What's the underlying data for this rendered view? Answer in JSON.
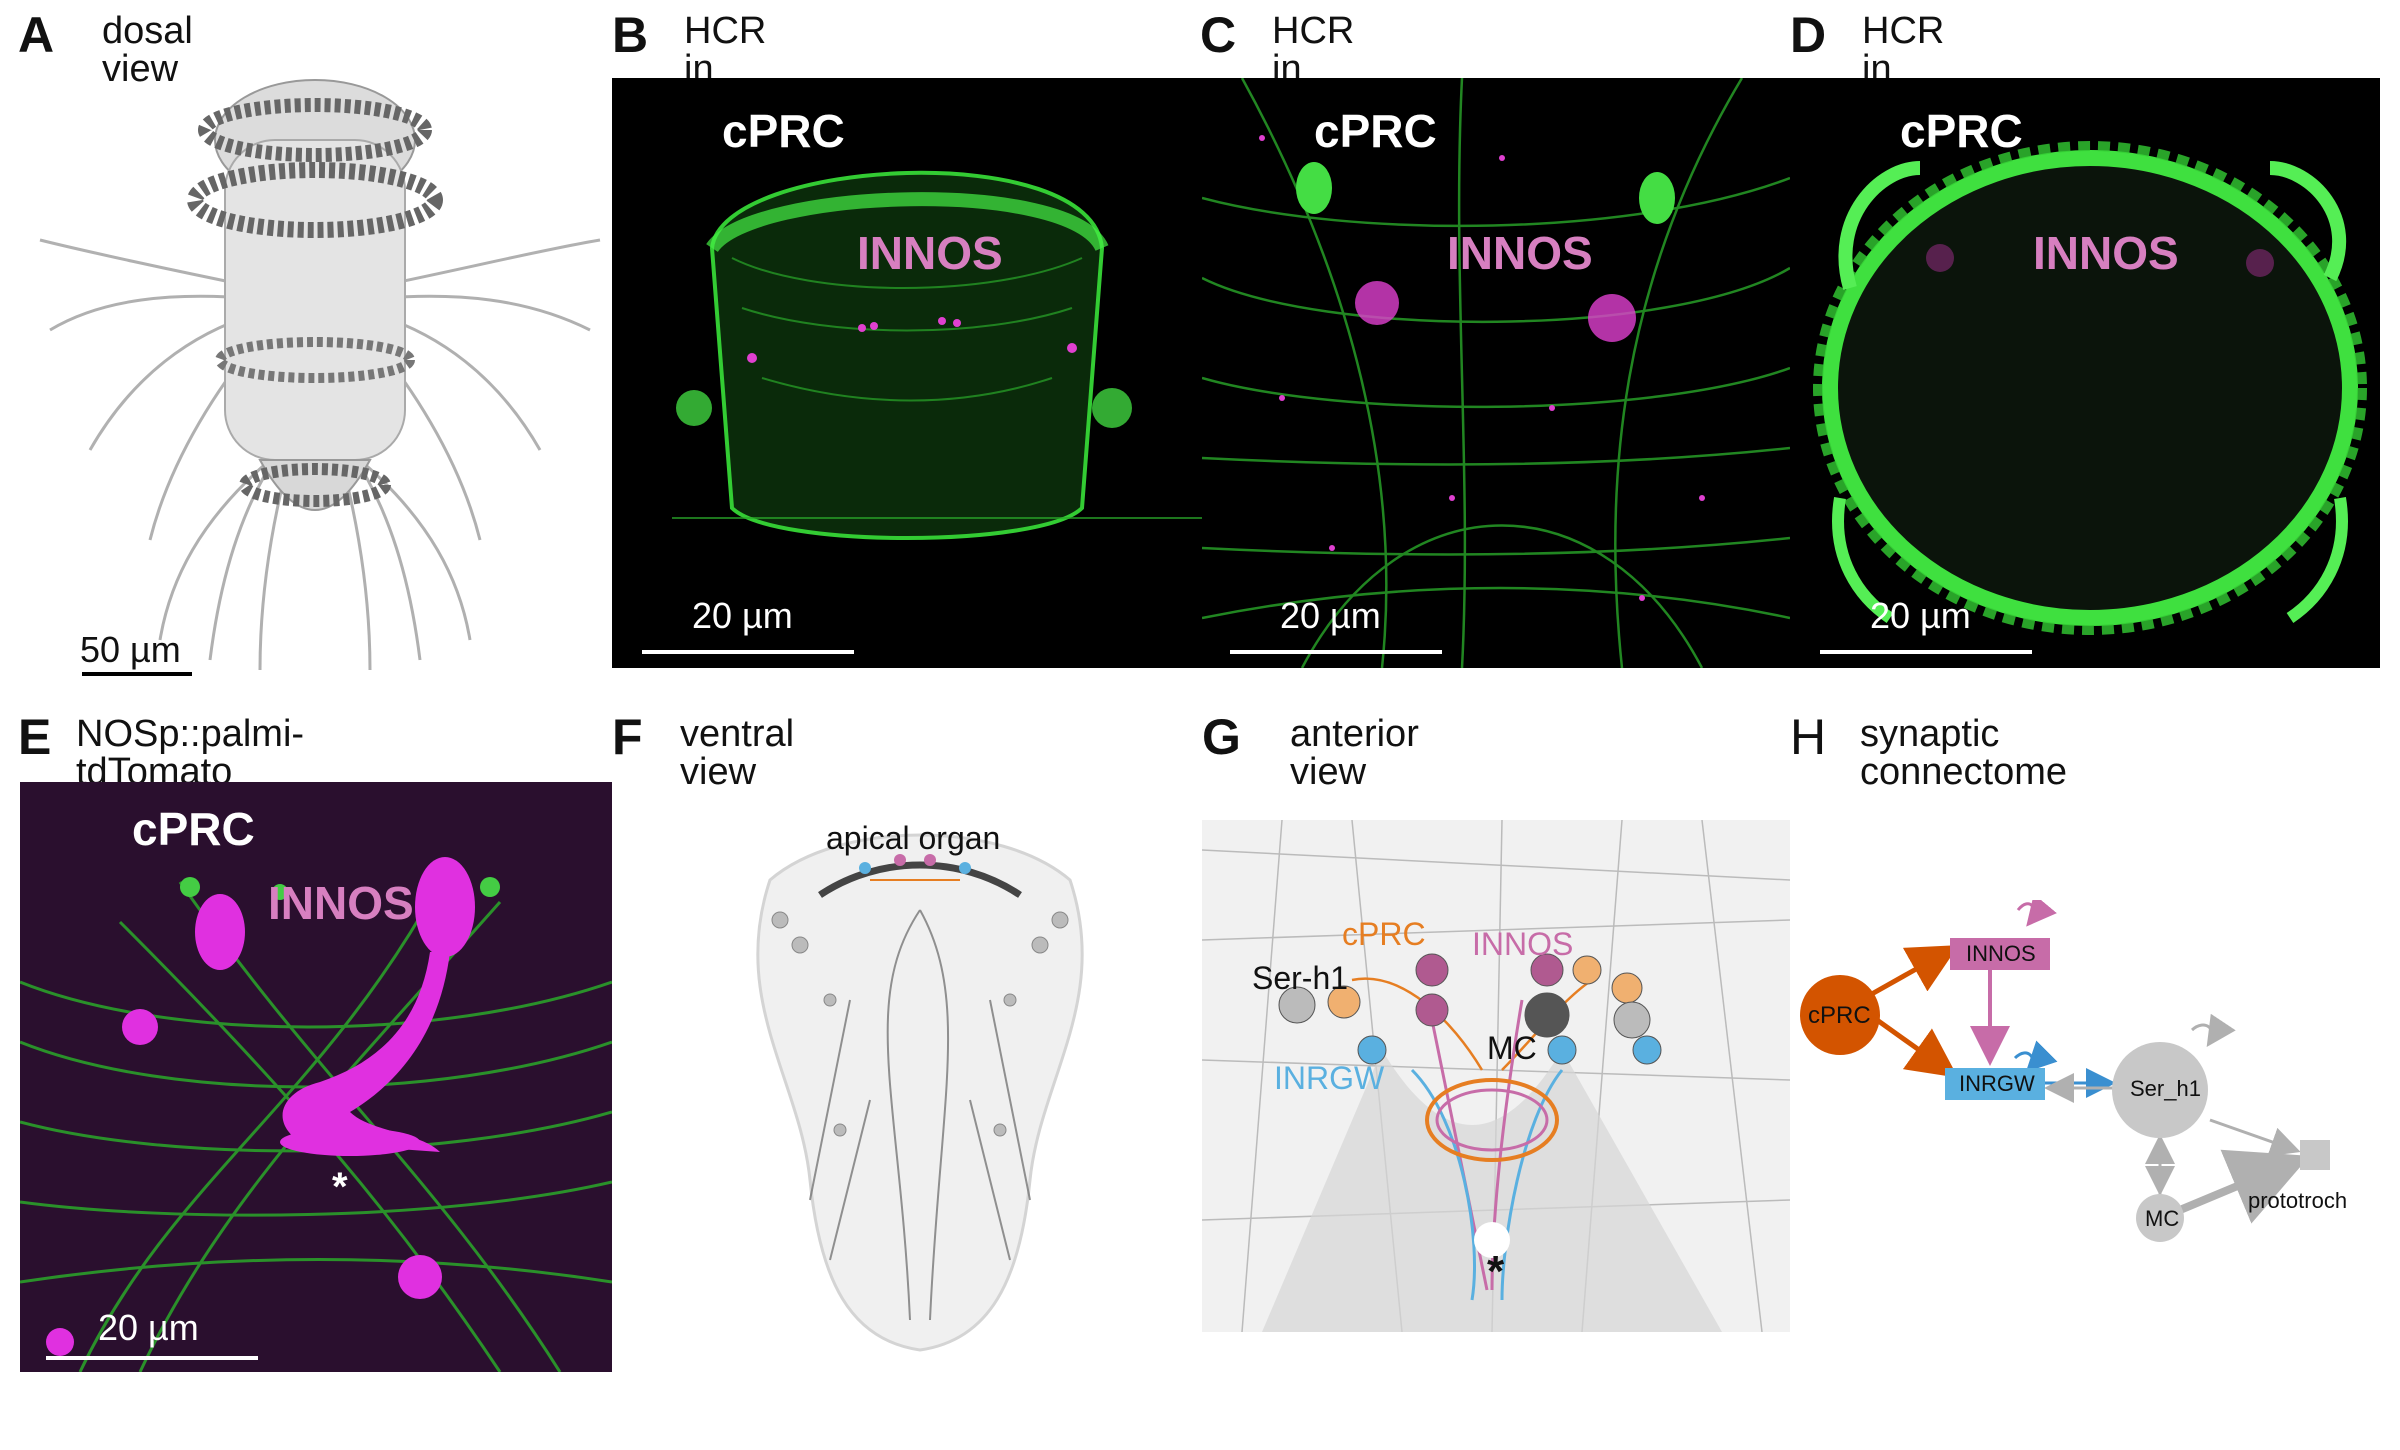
{
  "panels": {
    "A": {
      "letter": "A",
      "title": "dosal view",
      "scale": "50 µm"
    },
    "B": {
      "letter": "B",
      "title": "HCR in situ",
      "label1": "cPRC",
      "label2": "INNOS",
      "scale": "20 µm"
    },
    "C": {
      "letter": "C",
      "title": "HCR in situ",
      "label1": "cPRC",
      "label2": "INNOS",
      "scale": "20 µm"
    },
    "D": {
      "letter": "D",
      "title": "HCR in situ",
      "label1": "cPRC",
      "label2": "INNOS",
      "scale": "20 µm"
    },
    "E": {
      "letter": "E",
      "title": "NOSp::palmi-tdTomato",
      "label1": "cPRC",
      "label2": "INNOS",
      "asterisk": "*",
      "scale": "20 µm"
    },
    "F": {
      "letter": "F",
      "title": "ventral view",
      "label1": "apical organ"
    },
    "G": {
      "letter": "G",
      "title": "anterior view",
      "cprc": "cPRC",
      "innos": "INNOS",
      "serh1": "Ser-h1",
      "mc": "MC",
      "inrgw": "INRGW",
      "asterisk": "*"
    },
    "H": {
      "letter": "H",
      "title": "synaptic connectome",
      "nodes": {
        "cprc": "cPRC",
        "innos": "INNOS",
        "inrgw": "INRGW",
        "serh1": "Ser_h1",
        "mc": "MC",
        "prototroch": "prototroch"
      }
    }
  },
  "colors": {
    "green": "#33dd33",
    "magenta": "#e040d0",
    "orange": "#d35400",
    "pink": "#c76ca8",
    "blue": "#5ab0e0",
    "gray": "#c8c8c8"
  }
}
